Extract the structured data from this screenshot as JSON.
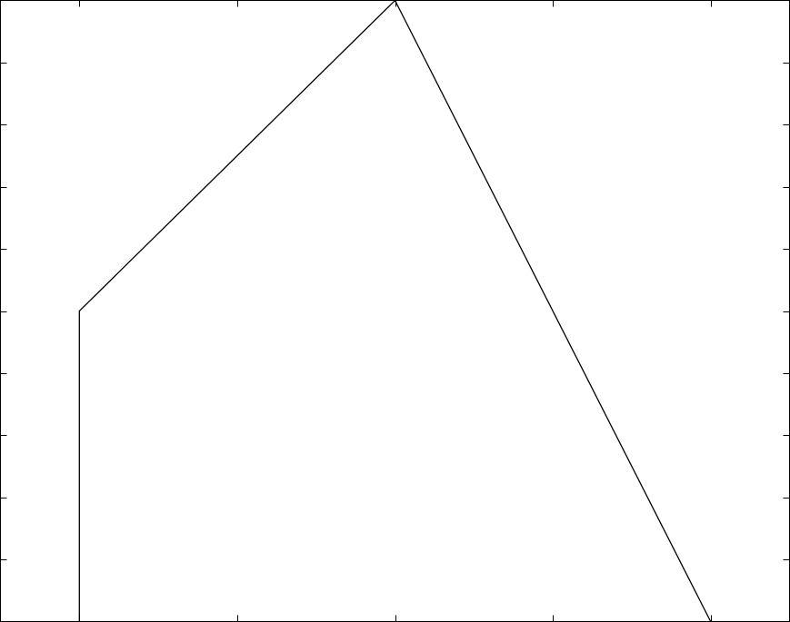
{
  "chart_data": {
    "type": "line",
    "title": "",
    "xlabel": "",
    "ylabel": "",
    "xlim": [
      0.5,
      5.5
    ],
    "ylim": [
      0,
      10
    ],
    "grid": false,
    "x_ticks": [
      1,
      2,
      3,
      4,
      5
    ],
    "y_ticks": [
      1,
      2,
      3,
      4,
      5,
      6,
      7,
      8,
      9
    ],
    "series": [
      {
        "color": "#000000",
        "points": [
          {
            "x": 1,
            "y": 0
          },
          {
            "x": 1,
            "y": 5
          },
          {
            "x": 3,
            "y": 10
          },
          {
            "x": 5,
            "y": 0
          }
        ]
      }
    ]
  }
}
